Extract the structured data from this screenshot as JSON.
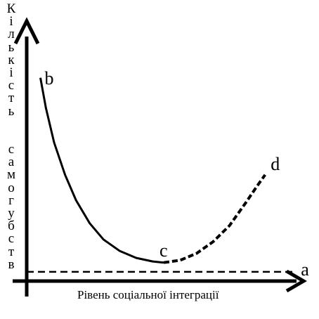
{
  "chart_data": {
    "type": "line",
    "xlabel": "Рівень соціальної інтеграції",
    "ylabel": "Кількість самогубств",
    "ylabel_lines": [
      "К",
      "і",
      "л",
      "ь",
      "к",
      "і",
      "с",
      "т",
      "ь",
      "",
      "",
      "с",
      "а",
      "м",
      "о",
      "г",
      "у",
      "б",
      "с",
      "т",
      "в"
    ],
    "series": [
      {
        "style": "solid",
        "x": [
          0.05,
          0.07,
          0.1,
          0.14,
          0.18,
          0.23,
          0.28,
          0.34,
          0.4,
          0.46,
          0.5
        ],
        "y": [
          0.8,
          0.67,
          0.52,
          0.38,
          0.27,
          0.17,
          0.1,
          0.05,
          0.02,
          0.005,
          0.0
        ]
      },
      {
        "style": "dashed",
        "x": [
          0.5,
          0.56,
          0.62,
          0.68,
          0.74,
          0.8,
          0.84,
          0.87
        ],
        "y": [
          0.0,
          0.01,
          0.04,
          0.09,
          0.16,
          0.26,
          0.33,
          0.38
        ]
      },
      {
        "style": "dashed",
        "x": [
          0.0,
          0.98
        ],
        "y": [
          -0.04,
          -0.04
        ]
      }
    ],
    "point_labels": [
      {
        "label": "b",
        "x": 0.05,
        "y": 0.8
      },
      {
        "label": "c",
        "x": 0.5,
        "y": 0.0
      },
      {
        "label": "d",
        "x": 0.87,
        "y": 0.38
      },
      {
        "label": "a",
        "x": 0.98,
        "y": -0.04
      }
    ],
    "xlim": [
      0,
      1
    ],
    "ylim": [
      -0.08,
      1
    ],
    "grid": false,
    "axis_arrows": true
  }
}
